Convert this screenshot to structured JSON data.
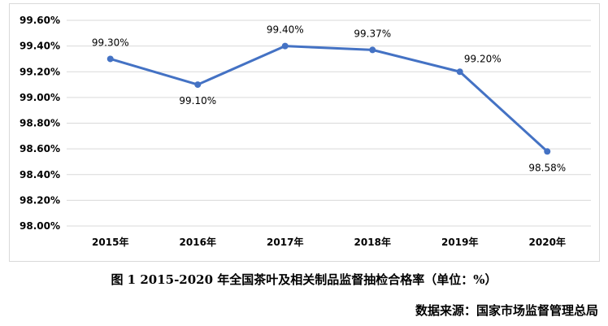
{
  "chart_data": {
    "type": "line",
    "categories": [
      "2015年",
      "2016年",
      "2017年",
      "2018年",
      "2019年",
      "2020年"
    ],
    "values": [
      99.3,
      99.1,
      99.4,
      99.37,
      99.2,
      98.58
    ],
    "data_labels": [
      "99.30%",
      "99.10%",
      "99.40%",
      "99.37%",
      "99.20%",
      "98.58%"
    ],
    "ylim": [
      98.0,
      99.6
    ],
    "yticks": [
      98.0,
      98.2,
      98.4,
      98.6,
      98.8,
      99.0,
      99.2,
      99.4,
      99.6
    ],
    "ytick_labels": [
      "98.00%",
      "98.20%",
      "98.40%",
      "98.60%",
      "98.80%",
      "99.00%",
      "99.20%",
      "99.40%",
      "99.60%"
    ],
    "grid": true,
    "line_color": "#4472c4",
    "grid_color": "#d9d9d9"
  },
  "caption": "图 1   2015-2020 年全国茶叶及相关制品监督抽检合格率（单位：%）",
  "source": "数据来源：国家市场监督管理总局"
}
